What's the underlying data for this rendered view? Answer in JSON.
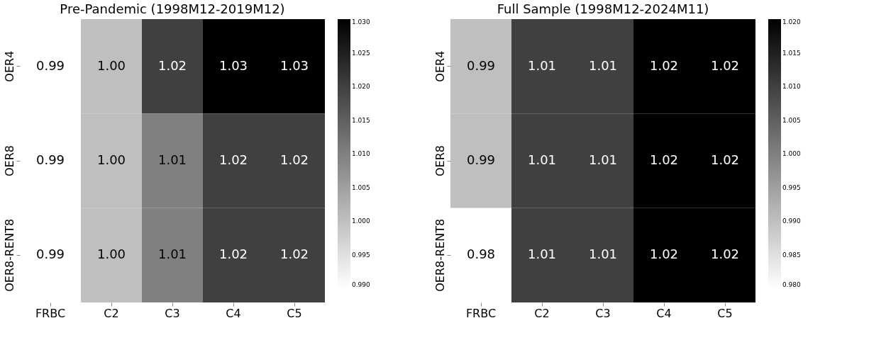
{
  "chart_data": [
    {
      "type": "heatmap",
      "title": "Pre-Pandemic (1998M12-2019M12)",
      "categories": [
        "FRBC",
        "C2",
        "C3",
        "C4",
        "C5"
      ],
      "y_categories": [
        "OER4",
        "OER8",
        "OER8-RENT8"
      ],
      "cells": [
        [
          0.99,
          1.0,
          1.02,
          1.03,
          1.03
        ],
        [
          0.99,
          1.0,
          1.01,
          1.02,
          1.02
        ],
        [
          0.99,
          1.0,
          1.01,
          1.02,
          1.02
        ]
      ],
      "cell_labels": [
        [
          "0.99",
          "1.00",
          "1.02",
          "1.03",
          "1.03"
        ],
        [
          "0.99",
          "1.00",
          "1.01",
          "1.02",
          "1.02"
        ],
        [
          "0.99",
          "1.00",
          "1.01",
          "1.02",
          "1.02"
        ]
      ],
      "clim": [
        0.99,
        1.03
      ],
      "cticks": [
        {
          "value": 0.99,
          "label": "0.990"
        },
        {
          "value": 0.995,
          "label": "0.995"
        },
        {
          "value": 1.0,
          "label": "1.000"
        },
        {
          "value": 1.005,
          "label": "1.005"
        },
        {
          "value": 1.01,
          "label": "1.010"
        },
        {
          "value": 1.015,
          "label": "1.015"
        },
        {
          "value": 1.02,
          "label": "1.020"
        },
        {
          "value": 1.025,
          "label": "1.025"
        },
        {
          "value": 1.03,
          "label": "1.030"
        }
      ]
    },
    {
      "type": "heatmap",
      "title": "Full Sample (1998M12-2024M11)",
      "categories": [
        "FRBC",
        "C2",
        "C3",
        "C4",
        "C5"
      ],
      "y_categories": [
        "OER4",
        "OER8",
        "OER8-RENT8"
      ],
      "cells": [
        [
          0.99,
          1.01,
          1.01,
          1.02,
          1.02
        ],
        [
          0.99,
          1.01,
          1.01,
          1.02,
          1.02
        ],
        [
          0.98,
          1.01,
          1.01,
          1.02,
          1.02
        ]
      ],
      "cell_labels": [
        [
          "0.99",
          "1.01",
          "1.01",
          "1.02",
          "1.02"
        ],
        [
          "0.99",
          "1.01",
          "1.01",
          "1.02",
          "1.02"
        ],
        [
          "0.98",
          "1.01",
          "1.01",
          "1.02",
          "1.02"
        ]
      ],
      "clim": [
        0.98,
        1.02
      ],
      "cticks": [
        {
          "value": 0.98,
          "label": "0.980"
        },
        {
          "value": 0.985,
          "label": "0.985"
        },
        {
          "value": 0.99,
          "label": "0.990"
        },
        {
          "value": 0.995,
          "label": "0.995"
        },
        {
          "value": 1.0,
          "label": "1.000"
        },
        {
          "value": 1.005,
          "label": "1.005"
        },
        {
          "value": 1.01,
          "label": "1.010"
        },
        {
          "value": 1.015,
          "label": "1.015"
        },
        {
          "value": 1.02,
          "label": "1.020"
        }
      ]
    }
  ]
}
